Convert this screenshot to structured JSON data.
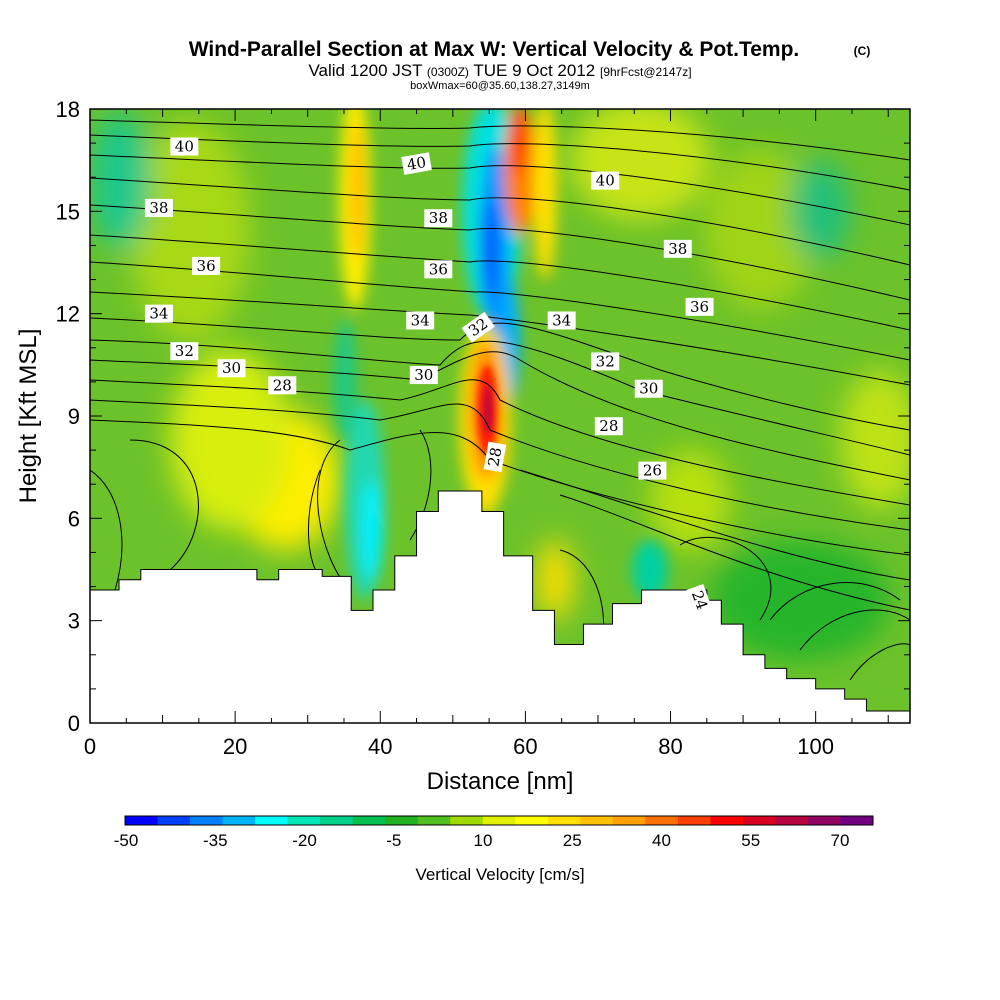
{
  "title": {
    "main": "Wind-Parallel Section at Max W: Vertical Velocity & Pot.Temp.",
    "copyright": "(C)",
    "valid_prefix": "Valid 1200 JST",
    "valid_utc": "(0300Z)",
    "valid_date": "TUE 9 Oct 2012",
    "forecast": "[9hrFcst@2147z]",
    "box_info": "boxWmax=60@35.60,138.27,3149m"
  },
  "chart_data": {
    "type": "heatmap",
    "xlabel": "Distance [nm]",
    "ylabel": "Height [Kft MSL]",
    "xlim": [
      0,
      113
    ],
    "ylim": [
      0,
      18
    ],
    "x_ticks": [
      0,
      20,
      40,
      60,
      80,
      100
    ],
    "y_ticks": [
      0,
      3,
      6,
      9,
      12,
      15,
      18
    ],
    "colorbar": {
      "label": "Vertical Velocity [cm/s]",
      "tick_labels": [
        "-50",
        "-35",
        "-20",
        "-5",
        "10",
        "25",
        "40",
        "55",
        "70"
      ],
      "colors": [
        "#0000ff",
        "#0040ff",
        "#0080ff",
        "#00b4ff",
        "#00ffff",
        "#00e6b4",
        "#00d08a",
        "#00c050",
        "#20b020",
        "#50c020",
        "#a0d800",
        "#e0f000",
        "#ffff00",
        "#ffe000",
        "#ffc000",
        "#ffa000",
        "#ff7000",
        "#ff4000",
        "#ff0000",
        "#d80020",
        "#b80040",
        "#900060",
        "#700080"
      ]
    },
    "terrain_kft": [
      [
        0,
        3.9
      ],
      [
        4,
        4.2
      ],
      [
        7,
        4.5
      ],
      [
        23,
        4.2
      ],
      [
        26,
        4.5
      ],
      [
        32,
        4.3
      ],
      [
        36,
        3.3
      ],
      [
        39,
        3.9
      ],
      [
        42,
        4.9
      ],
      [
        45,
        6.2
      ],
      [
        48,
        6.8
      ],
      [
        54,
        6.2
      ],
      [
        57,
        4.9
      ],
      [
        61,
        3.3
      ],
      [
        64,
        2.3
      ],
      [
        68,
        2.9
      ],
      [
        72,
        3.5
      ],
      [
        76,
        3.9
      ],
      [
        85,
        3.6
      ],
      [
        87,
        2.9
      ],
      [
        90,
        2.0
      ],
      [
        93,
        1.6
      ],
      [
        96,
        1.3
      ],
      [
        100,
        1.0
      ],
      [
        104,
        0.7
      ],
      [
        107,
        0.35
      ],
      [
        113,
        0.35
      ]
    ],
    "updraft_max": {
      "x": 55,
      "z": 9.5,
      "w": 60
    },
    "downdraft_max": {
      "x": 56.5,
      "z": 13.5,
      "w": -50
    },
    "theta_contours_labels": [
      {
        "label": "40",
        "x": 13,
        "z": 16.9
      },
      {
        "label": "40",
        "x": 45,
        "z": 16.4,
        "rotate": -10
      },
      {
        "label": "40",
        "x": 71,
        "z": 15.9
      },
      {
        "label": "38",
        "x": 9.5,
        "z": 15.1
      },
      {
        "label": "38",
        "x": 48,
        "z": 14.8
      },
      {
        "label": "38",
        "x": 81,
        "z": 13.9
      },
      {
        "label": "36",
        "x": 16,
        "z": 13.4
      },
      {
        "label": "36",
        "x": 48,
        "z": 13.3
      },
      {
        "label": "36",
        "x": 84,
        "z": 12.2
      },
      {
        "label": "34",
        "x": 9.5,
        "z": 12.0
      },
      {
        "label": "34",
        "x": 45.5,
        "z": 11.8
      },
      {
        "label": "34",
        "x": 65,
        "z": 11.8
      },
      {
        "label": "32",
        "x": 13,
        "z": 10.9
      },
      {
        "label": "32",
        "x": 53.5,
        "z": 11.6,
        "rotate": -35
      },
      {
        "label": "32",
        "x": 71,
        "z": 10.6
      },
      {
        "label": "30",
        "x": 19.5,
        "z": 10.4
      },
      {
        "label": "30",
        "x": 46,
        "z": 10.2
      },
      {
        "label": "30",
        "x": 77,
        "z": 9.8
      },
      {
        "label": "28",
        "x": 26.5,
        "z": 9.9
      },
      {
        "label": "28",
        "x": 55.8,
        "z": 7.8,
        "rotate": -80
      },
      {
        "label": "28",
        "x": 71.5,
        "z": 8.7
      },
      {
        "label": "26",
        "x": 77.5,
        "z": 7.4
      },
      {
        "label": "24",
        "x": 84,
        "z": 3.6,
        "rotate": 70
      }
    ]
  }
}
